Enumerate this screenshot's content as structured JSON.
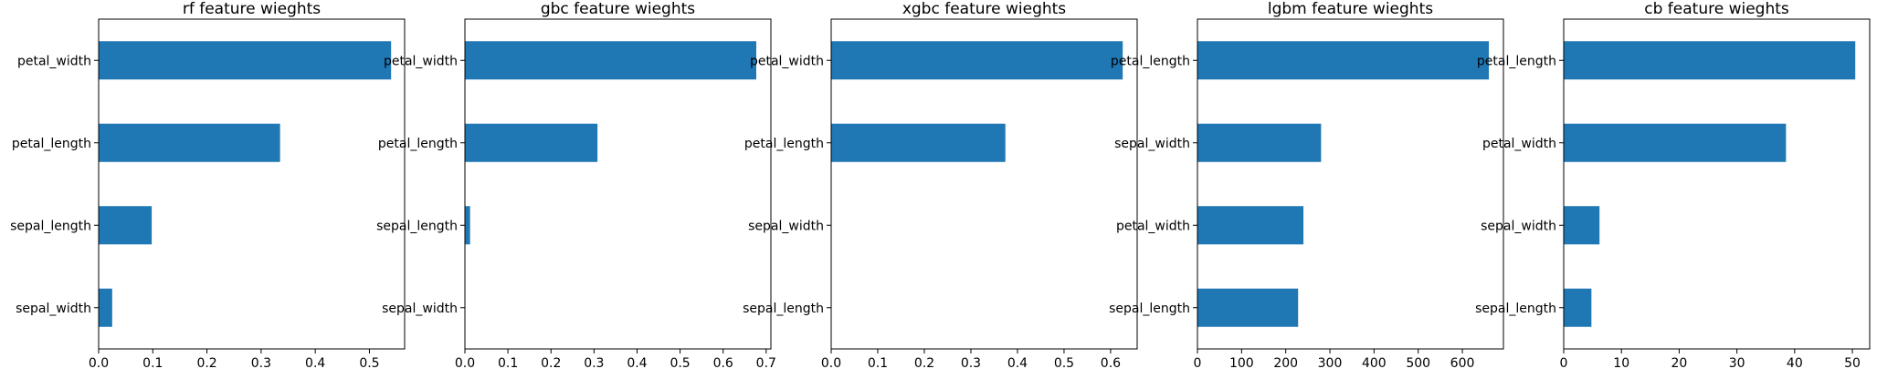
{
  "chart_data": [
    {
      "type": "bar",
      "orientation": "horizontal",
      "title": "rf feature wieghts",
      "categories": [
        "petal_width",
        "petal_length",
        "sepal_length",
        "sepal_width"
      ],
      "values": [
        0.54,
        0.335,
        0.098,
        0.025
      ],
      "xlim": [
        0,
        0.565
      ],
      "xticks": [
        0.0,
        0.1,
        0.2,
        0.3,
        0.4,
        0.5
      ],
      "xtick_labels": [
        "0.0",
        "0.1",
        "0.2",
        "0.3",
        "0.4",
        "0.5"
      ],
      "xlabel": "",
      "ylabel": "",
      "color": "#1f77b4",
      "grid": false
    },
    {
      "type": "bar",
      "orientation": "horizontal",
      "title": "gbc feature wieghts",
      "categories": [
        "petal_width",
        "petal_length",
        "sepal_length",
        "sepal_width"
      ],
      "values": [
        0.677,
        0.308,
        0.012,
        0.001
      ],
      "xlim": [
        0,
        0.711
      ],
      "xticks": [
        0.0,
        0.1,
        0.2,
        0.3,
        0.4,
        0.5,
        0.6,
        0.7
      ],
      "xtick_labels": [
        "0.0",
        "0.1",
        "0.2",
        "0.3",
        "0.4",
        "0.5",
        "0.6",
        "0.7"
      ],
      "xlabel": "",
      "ylabel": "",
      "color": "#1f77b4",
      "grid": false
    },
    {
      "type": "bar",
      "orientation": "horizontal",
      "title": "xgbc feature wieghts",
      "categories": [
        "petal_width",
        "petal_length",
        "sepal_width",
        "sepal_length"
      ],
      "values": [
        0.626,
        0.374,
        0.0,
        0.0
      ],
      "xlim": [
        0,
        0.657
      ],
      "xticks": [
        0.0,
        0.1,
        0.2,
        0.3,
        0.4,
        0.5,
        0.6
      ],
      "xtick_labels": [
        "0.0",
        "0.1",
        "0.2",
        "0.3",
        "0.4",
        "0.5",
        "0.6"
      ],
      "xlabel": "",
      "ylabel": "",
      "color": "#1f77b4",
      "grid": false
    },
    {
      "type": "bar",
      "orientation": "horizontal",
      "title": "lgbm feature wieghts",
      "categories": [
        "petal_length",
        "sepal_width",
        "petal_width",
        "sepal_length"
      ],
      "values": [
        660,
        280,
        240,
        228
      ],
      "xlim": [
        0,
        693
      ],
      "xticks": [
        0,
        100,
        200,
        300,
        400,
        500,
        600
      ],
      "xtick_labels": [
        "0",
        "100",
        "200",
        "300",
        "400",
        "500",
        "600"
      ],
      "xlabel": "",
      "ylabel": "",
      "color": "#1f77b4",
      "grid": false
    },
    {
      "type": "bar",
      "orientation": "horizontal",
      "title": "cb feature wieghts",
      "categories": [
        "petal_length",
        "petal_width",
        "sepal_width",
        "sepal_length"
      ],
      "values": [
        50.5,
        38.5,
        6.2,
        4.8
      ],
      "xlim": [
        0,
        53
      ],
      "xticks": [
        0,
        10,
        20,
        30,
        40,
        50
      ],
      "xtick_labels": [
        "0",
        "10",
        "20",
        "30",
        "40",
        "50"
      ],
      "xlabel": "",
      "ylabel": "",
      "color": "#1f77b4",
      "grid": false
    }
  ]
}
